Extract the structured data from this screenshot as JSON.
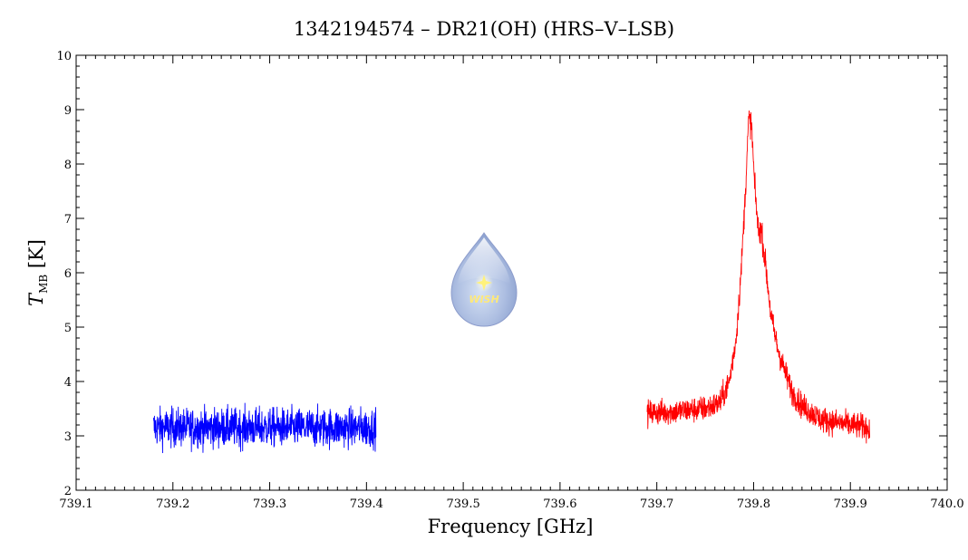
{
  "chart_data": {
    "type": "line",
    "title": "1342194574 – DR21(OH) (HRS–V–LSB)",
    "xlabel": "Frequency [GHz]",
    "ylabel_main": "T",
    "ylabel_sub": "MB",
    "ylabel_unit": " [K]",
    "xlim": [
      739.1,
      740.0
    ],
    "ylim": [
      2,
      10
    ],
    "x_ticks": [
      "739.1",
      "739.2",
      "739.3",
      "739.4",
      "739.5",
      "739.6",
      "739.7",
      "739.8",
      "739.9",
      "740.0"
    ],
    "y_ticks": [
      "2",
      "3",
      "4",
      "5",
      "6",
      "7",
      "8",
      "9",
      "10"
    ],
    "grid": false,
    "series": [
      {
        "color": "#0000ff",
        "x_range": [
          739.18,
          739.41
        ],
        "baseline": 3.15,
        "noise": 0.18,
        "profile": []
      },
      {
        "color": "#ff0000",
        "x_range": [
          739.69,
          739.92
        ],
        "baseline": 3.2,
        "noise": 0.12,
        "profile": [
          [
            739.69,
            3.42
          ],
          [
            739.72,
            3.45
          ],
          [
            739.75,
            3.5
          ],
          [
            739.765,
            3.6
          ],
          [
            739.775,
            4.0
          ],
          [
            739.782,
            4.8
          ],
          [
            739.787,
            6.0
          ],
          [
            739.791,
            7.3
          ],
          [
            739.795,
            8.85
          ],
          [
            739.798,
            8.7
          ],
          [
            739.801,
            7.6
          ],
          [
            739.805,
            6.75
          ],
          [
            739.808,
            6.8
          ],
          [
            739.812,
            6.2
          ],
          [
            739.818,
            5.2
          ],
          [
            739.825,
            4.6
          ],
          [
            739.832,
            4.2
          ],
          [
            739.84,
            3.8
          ],
          [
            739.85,
            3.55
          ],
          [
            739.87,
            3.3
          ],
          [
            739.9,
            3.2
          ],
          [
            739.92,
            3.15
          ]
        ]
      }
    ],
    "logo_text": "WISH"
  }
}
